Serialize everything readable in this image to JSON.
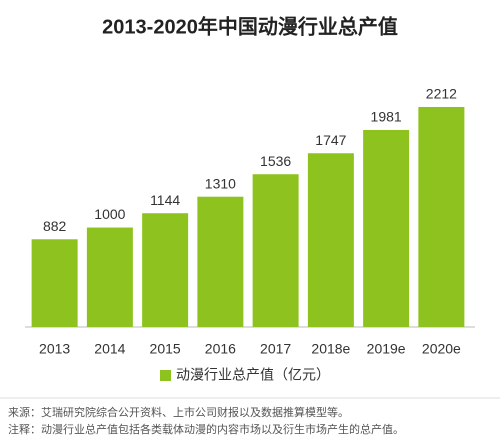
{
  "chart_data": {
    "type": "bar",
    "title": "2013-2020年中国动漫行业总产值",
    "categories": [
      "2013",
      "2014",
      "2015",
      "2016",
      "2017",
      "2018e",
      "2019e",
      "2020e"
    ],
    "series": [
      {
        "name": "动漫行业总产值（亿元）",
        "color": "#8dc21f",
        "values": [
          882,
          1000,
          1144,
          1310,
          1536,
          1747,
          1981,
          2212
        ]
      }
    ],
    "source": "来源：艾瑞研究院综合公开资料、上市公司财报以及数据推算模型等。",
    "note": "注释：动漫行业总产值包括各类载体动漫的内容市场以及衍生市场产生的总产值。"
  }
}
